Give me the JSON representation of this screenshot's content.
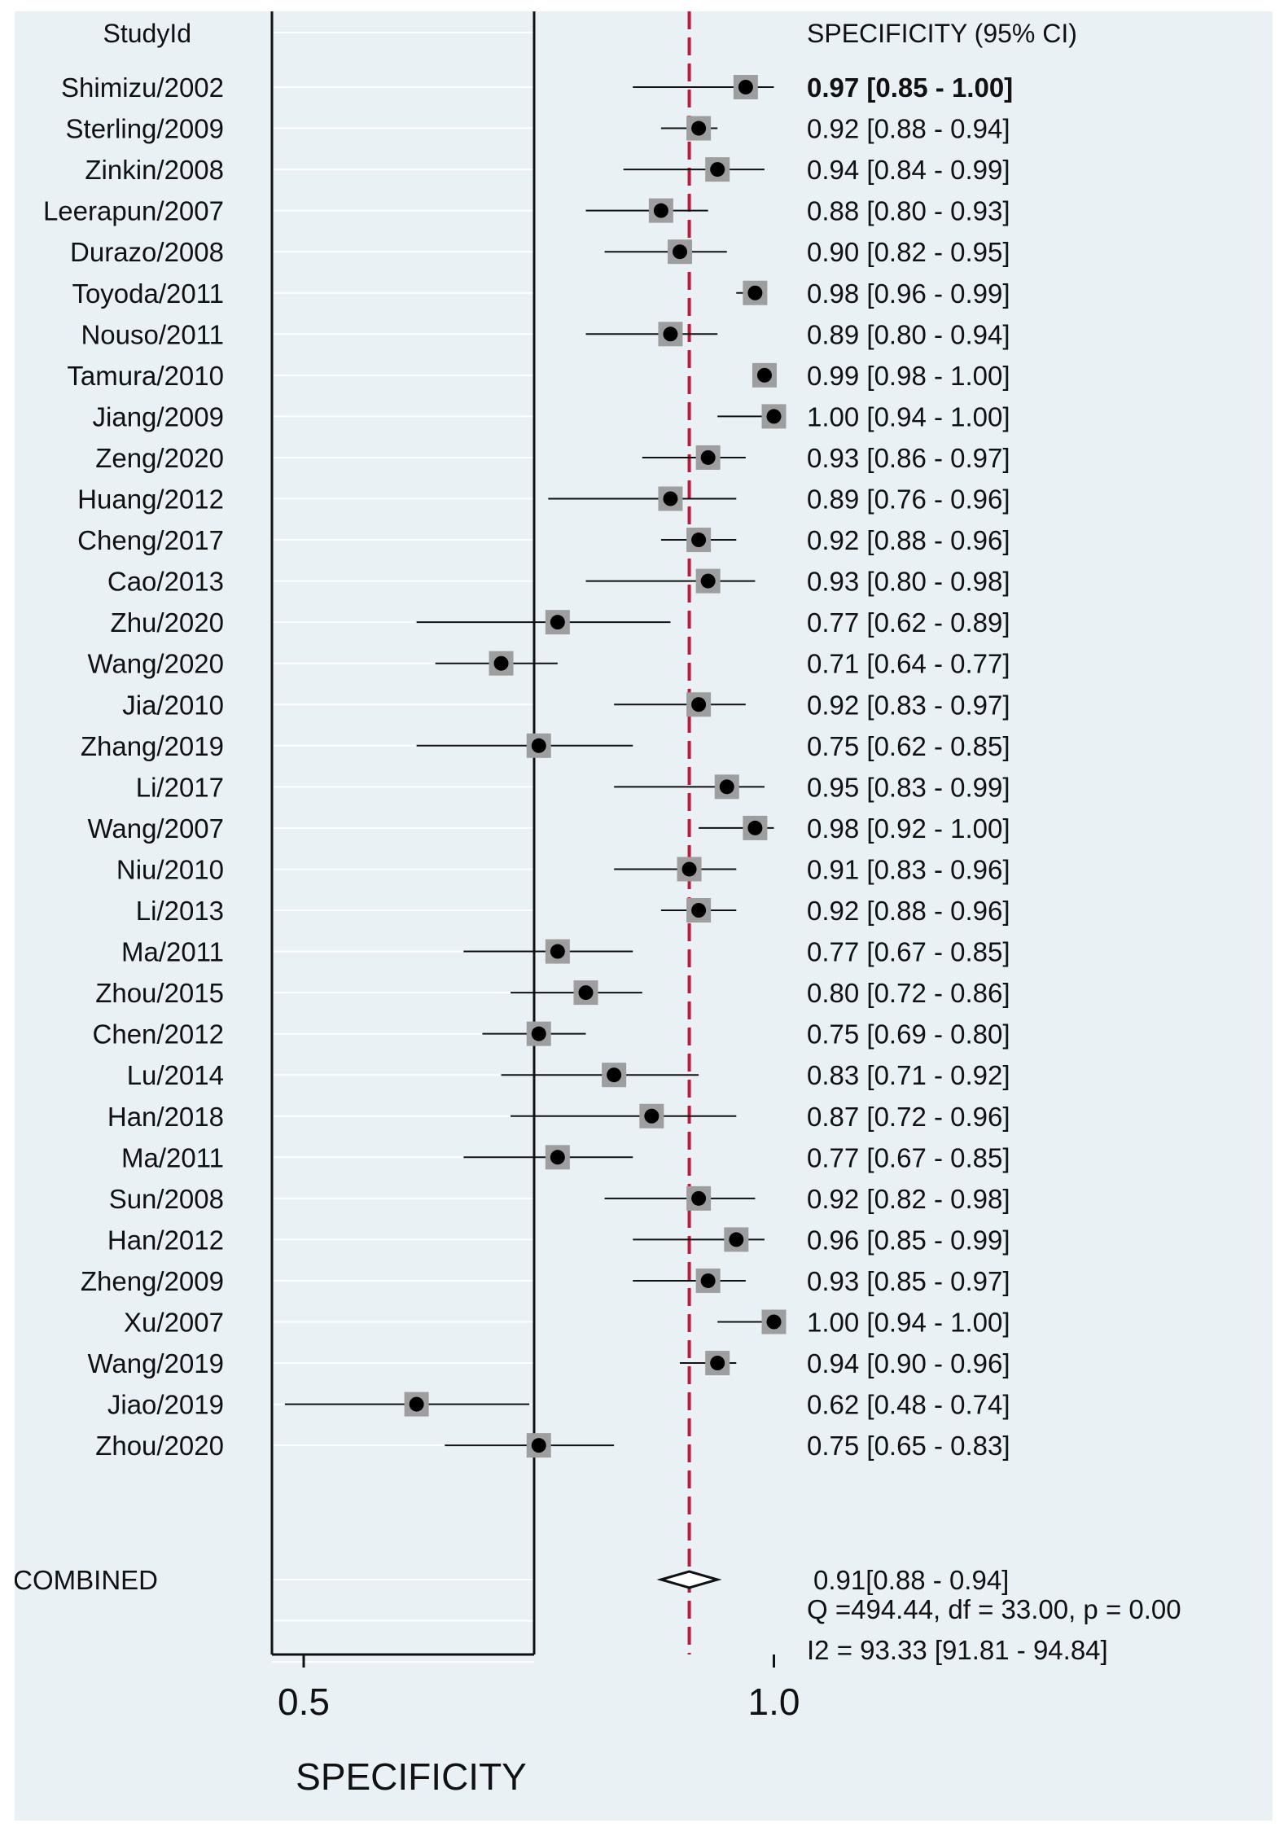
{
  "chart_data": {
    "type": "forest",
    "left_header": "StudyId",
    "right_header": "SPECIFICITY (95% CI)",
    "xlabel": "SPECIFICITY",
    "xlim": [
      0.42,
      1.04
    ],
    "xticks": [
      "0.5",
      "1.0"
    ],
    "reference_line": 0.91,
    "studies": [
      {
        "name": "Shimizu/2002",
        "est": 0.97,
        "lo": 0.85,
        "hi": 1.0,
        "label": "0.97 [0.85 - 1.00]"
      },
      {
        "name": "Sterling/2009",
        "est": 0.92,
        "lo": 0.88,
        "hi": 0.94,
        "label": "0.92 [0.88 - 0.94]"
      },
      {
        "name": "Zinkin/2008",
        "est": 0.94,
        "lo": 0.84,
        "hi": 0.99,
        "label": "0.94 [0.84 - 0.99]"
      },
      {
        "name": "Leerapun/2007",
        "est": 0.88,
        "lo": 0.8,
        "hi": 0.93,
        "label": "0.88 [0.80 - 0.93]"
      },
      {
        "name": "Durazo/2008",
        "est": 0.9,
        "lo": 0.82,
        "hi": 0.95,
        "label": "0.90 [0.82 - 0.95]"
      },
      {
        "name": "Toyoda/2011",
        "est": 0.98,
        "lo": 0.96,
        "hi": 0.99,
        "label": "0.98 [0.96 - 0.99]"
      },
      {
        "name": "Nouso/2011",
        "est": 0.89,
        "lo": 0.8,
        "hi": 0.94,
        "label": "0.89 [0.80 - 0.94]"
      },
      {
        "name": "Tamura/2010",
        "est": 0.99,
        "lo": 0.98,
        "hi": 1.0,
        "label": "0.99 [0.98 - 1.00]"
      },
      {
        "name": "Jiang/2009",
        "est": 1.0,
        "lo": 0.94,
        "hi": 1.0,
        "label": "1.00 [0.94 - 1.00]"
      },
      {
        "name": "Zeng/2020",
        "est": 0.93,
        "lo": 0.86,
        "hi": 0.97,
        "label": "0.93 [0.86 - 0.97]"
      },
      {
        "name": "Huang/2012",
        "est": 0.89,
        "lo": 0.76,
        "hi": 0.96,
        "label": "0.89 [0.76 - 0.96]"
      },
      {
        "name": "Cheng/2017",
        "est": 0.92,
        "lo": 0.88,
        "hi": 0.96,
        "label": "0.92 [0.88 - 0.96]"
      },
      {
        "name": "Cao/2013",
        "est": 0.93,
        "lo": 0.8,
        "hi": 0.98,
        "label": "0.93 [0.80 - 0.98]"
      },
      {
        "name": "Zhu/2020",
        "est": 0.77,
        "lo": 0.62,
        "hi": 0.89,
        "label": "0.77 [0.62 - 0.89]"
      },
      {
        "name": "Wang/2020",
        "est": 0.71,
        "lo": 0.64,
        "hi": 0.77,
        "label": "0.71 [0.64 - 0.77]"
      },
      {
        "name": "Jia/2010",
        "est": 0.92,
        "lo": 0.83,
        "hi": 0.97,
        "label": "0.92 [0.83 - 0.97]"
      },
      {
        "name": "Zhang/2019",
        "est": 0.75,
        "lo": 0.62,
        "hi": 0.85,
        "label": "0.75 [0.62 - 0.85]"
      },
      {
        "name": "Li/2017",
        "est": 0.95,
        "lo": 0.83,
        "hi": 0.99,
        "label": "0.95 [0.83 - 0.99]"
      },
      {
        "name": "Wang/2007",
        "est": 0.98,
        "lo": 0.92,
        "hi": 1.0,
        "label": "0.98 [0.92 - 1.00]"
      },
      {
        "name": "Niu/2010",
        "est": 0.91,
        "lo": 0.83,
        "hi": 0.96,
        "label": "0.91 [0.83 - 0.96]"
      },
      {
        "name": "Li/2013",
        "est": 0.92,
        "lo": 0.88,
        "hi": 0.96,
        "label": "0.92 [0.88 - 0.96]"
      },
      {
        "name": "Ma/2011",
        "est": 0.77,
        "lo": 0.67,
        "hi": 0.85,
        "label": "0.77 [0.67 - 0.85]"
      },
      {
        "name": "Zhou/2015",
        "est": 0.8,
        "lo": 0.72,
        "hi": 0.86,
        "label": "0.80 [0.72 - 0.86]"
      },
      {
        "name": "Chen/2012",
        "est": 0.75,
        "lo": 0.69,
        "hi": 0.8,
        "label": "0.75 [0.69 - 0.80]"
      },
      {
        "name": "Lu/2014",
        "est": 0.83,
        "lo": 0.71,
        "hi": 0.92,
        "label": "0.83 [0.71 - 0.92]"
      },
      {
        "name": "Han/2018",
        "est": 0.87,
        "lo": 0.72,
        "hi": 0.96,
        "label": "0.87 [0.72 - 0.96]"
      },
      {
        "name": "Ma/2011",
        "est": 0.77,
        "lo": 0.67,
        "hi": 0.85,
        "label": "0.77 [0.67 - 0.85]"
      },
      {
        "name": "Sun/2008",
        "est": 0.92,
        "lo": 0.82,
        "hi": 0.98,
        "label": "0.92 [0.82 - 0.98]"
      },
      {
        "name": "Han/2012",
        "est": 0.96,
        "lo": 0.85,
        "hi": 0.99,
        "label": "0.96 [0.85 - 0.99]"
      },
      {
        "name": "Zheng/2009",
        "est": 0.93,
        "lo": 0.85,
        "hi": 0.97,
        "label": "0.93 [0.85 - 0.97]"
      },
      {
        "name": "Xu/2007",
        "est": 1.0,
        "lo": 0.94,
        "hi": 1.0,
        "label": "1.00 [0.94 - 1.00]"
      },
      {
        "name": "Wang/2019",
        "est": 0.94,
        "lo": 0.9,
        "hi": 0.96,
        "label": "0.94 [0.90 - 0.96]"
      },
      {
        "name": "Jiao/2019",
        "est": 0.62,
        "lo": 0.48,
        "hi": 0.74,
        "label": "0.62 [0.48 - 0.74]"
      },
      {
        "name": "Zhou/2020",
        "est": 0.75,
        "lo": 0.65,
        "hi": 0.83,
        "label": "0.75 [0.65 - 0.83]"
      }
    ],
    "combined": {
      "name": "COMBINED",
      "est": 0.91,
      "lo": 0.88,
      "hi": 0.94,
      "label": "0.91[0.88 - 0.94]"
    },
    "heterogeneity": [
      "Q =494.44, df = 33.00, p =  0.00",
      "I2 = 93.33 [91.81 - 94.84]"
    ],
    "colors": {
      "background": "#e9f1f4",
      "gridline": "#ffffff",
      "reference": "#c0183a",
      "box": "#9e9e9e",
      "point": "#000000"
    }
  }
}
